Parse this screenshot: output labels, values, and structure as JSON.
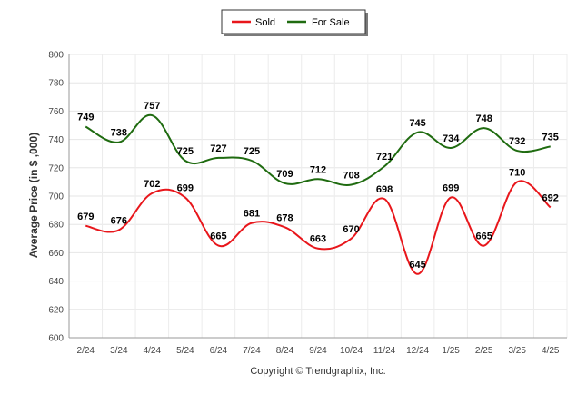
{
  "chart_data": {
    "type": "line",
    "categories": [
      "2/24",
      "3/24",
      "4/24",
      "5/24",
      "6/24",
      "7/24",
      "8/24",
      "9/24",
      "10/24",
      "11/24",
      "12/24",
      "1/25",
      "2/25",
      "3/25",
      "4/25"
    ],
    "series": [
      {
        "name": "Sold",
        "color": "#e8161b",
        "values": [
          679,
          676,
          702,
          699,
          665,
          681,
          678,
          663,
          670,
          698,
          645,
          699,
          665,
          710,
          692
        ]
      },
      {
        "name": "For Sale",
        "color": "#1f6b10",
        "values": [
          749,
          738,
          757,
          725,
          727,
          725,
          709,
          712,
          708,
          721,
          745,
          734,
          748,
          732,
          735
        ]
      }
    ],
    "ylabel": "Average Price (in $ ,000)",
    "ylim": [
      600,
      800
    ],
    "yticks": [
      600,
      620,
      640,
      660,
      680,
      700,
      720,
      740,
      760,
      780,
      800
    ],
    "grid": true,
    "legend_position": "top-center",
    "footer": "Copyright © Trendgraphix, Inc."
  }
}
